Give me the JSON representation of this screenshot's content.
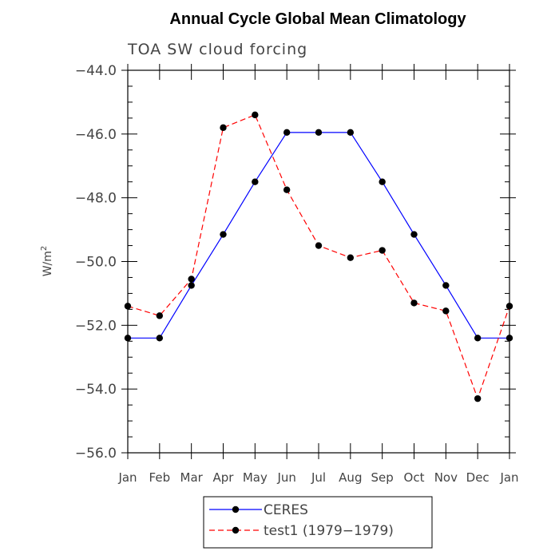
{
  "chart_data": {
    "type": "line",
    "title": "Annual Cycle Global Mean Climatology",
    "subtitle": "TOA SW cloud forcing",
    "ylabel": "W/m",
    "ylabel_sup": "2",
    "xlabel": "",
    "categories": [
      "Jan",
      "Feb",
      "Mar",
      "Apr",
      "May",
      "Jun",
      "Jul",
      "Aug",
      "Sep",
      "Oct",
      "Nov",
      "Dec",
      "Jan"
    ],
    "ylim": [
      -56.0,
      -44.0
    ],
    "yticks": [
      -56.0,
      -54.0,
      -52.0,
      -50.0,
      -48.0,
      -46.0,
      -44.0
    ],
    "ytick_labels": [
      "−56.0",
      "−54.0",
      "−52.0",
      "−50.0",
      "−48.0",
      "−46.0",
      "−44.0"
    ],
    "grid": false,
    "legend_position": "bottom",
    "series": [
      {
        "name": "CERES",
        "color": "#0000ff",
        "dash": "solid",
        "values": [
          -52.4,
          -52.4,
          -50.75,
          -49.15,
          -47.5,
          -45.95,
          -45.95,
          -45.95,
          -47.5,
          -49.15,
          -50.75,
          -52.4,
          -52.4
        ]
      },
      {
        "name": "test1 (1979−1979)",
        "color": "#ff0000",
        "dash": "dashed",
        "values": [
          -51.4,
          -51.7,
          -50.55,
          -45.8,
          -45.4,
          -47.75,
          -49.5,
          -49.88,
          -49.65,
          -51.3,
          -51.55,
          -54.3,
          -51.4
        ]
      }
    ]
  }
}
